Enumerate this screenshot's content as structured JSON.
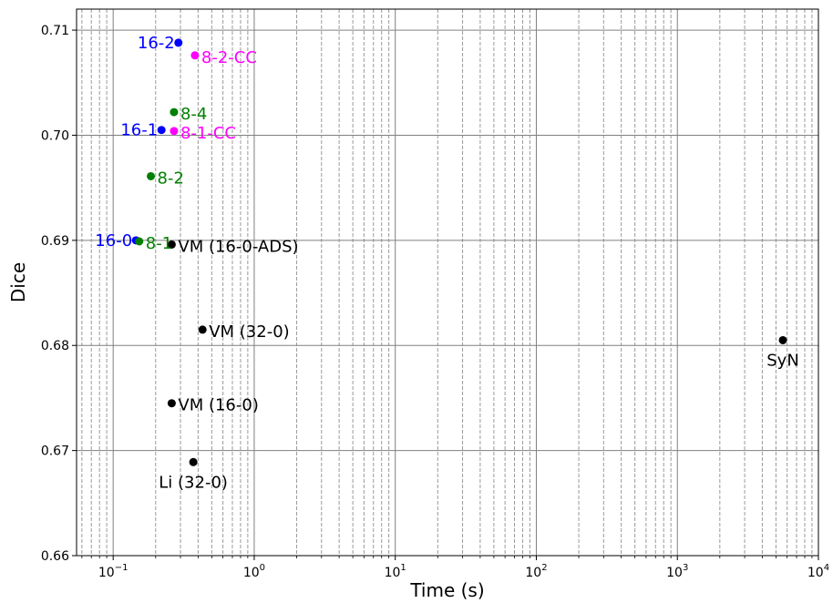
{
  "chart_data": {
    "type": "scatter",
    "title": "",
    "xlabel": "Time (s)",
    "ylabel": "Dice",
    "x_scale": "log",
    "xlim": [
      0.055,
      10000
    ],
    "ylim": [
      0.66,
      0.712
    ],
    "grid": true,
    "x_ticks": [
      {
        "value": 0.1,
        "base": "10",
        "exp": "−1"
      },
      {
        "value": 1,
        "base": "10",
        "exp": "0"
      },
      {
        "value": 10,
        "base": "10",
        "exp": "1"
      },
      {
        "value": 100,
        "base": "10",
        "exp": "2"
      },
      {
        "value": 1000,
        "base": "10",
        "exp": "3"
      },
      {
        "value": 10000,
        "base": "10",
        "exp": "4"
      }
    ],
    "y_ticks": [
      {
        "value": 0.66,
        "label": "0.66"
      },
      {
        "value": 0.67,
        "label": "0.67"
      },
      {
        "value": 0.68,
        "label": "0.68"
      },
      {
        "value": 0.69,
        "label": "0.69"
      },
      {
        "value": 0.7,
        "label": "0.70"
      },
      {
        "value": 0.71,
        "label": "0.71"
      }
    ],
    "points": [
      {
        "label": "16-2",
        "x": 0.29,
        "y": 0.7088,
        "color": "#0000ff",
        "label_pos": "left"
      },
      {
        "label": "8-2-CC",
        "x": 0.38,
        "y": 0.7076,
        "color": "#ff00ff",
        "label_pos": "right"
      },
      {
        "label": "8-4",
        "x": 0.27,
        "y": 0.7022,
        "color": "#008000",
        "label_pos": "right"
      },
      {
        "label": "16-1",
        "x": 0.22,
        "y": 0.7005,
        "color": "#0000ff",
        "label_pos": "left"
      },
      {
        "label": "8-1-CC",
        "x": 0.27,
        "y": 0.7004,
        "color": "#ff00ff",
        "label_pos": "right"
      },
      {
        "label": "8-2",
        "x": 0.185,
        "y": 0.6961,
        "color": "#008000",
        "label_pos": "right"
      },
      {
        "label": "16-0",
        "x": 0.145,
        "y": 0.69,
        "color": "#0000ff",
        "label_pos": "left"
      },
      {
        "label": "8-1",
        "x": 0.153,
        "y": 0.6899,
        "color": "#008000",
        "label_pos": "right"
      },
      {
        "label": "VM (16-0-ADS)",
        "x": 0.26,
        "y": 0.6896,
        "color": "#000000",
        "label_pos": "right"
      },
      {
        "label": "VM (32-0)",
        "x": 0.43,
        "y": 0.6815,
        "color": "#000000",
        "label_pos": "right"
      },
      {
        "label": "SyN",
        "x": 5600,
        "y": 0.6805,
        "color": "#000000",
        "label_pos": "below"
      },
      {
        "label": "VM (16-0)",
        "x": 0.26,
        "y": 0.6745,
        "color": "#000000",
        "label_pos": "right"
      },
      {
        "label": "Li (32-0)",
        "x": 0.37,
        "y": 0.6689,
        "color": "#000000",
        "label_pos": "below"
      }
    ]
  }
}
